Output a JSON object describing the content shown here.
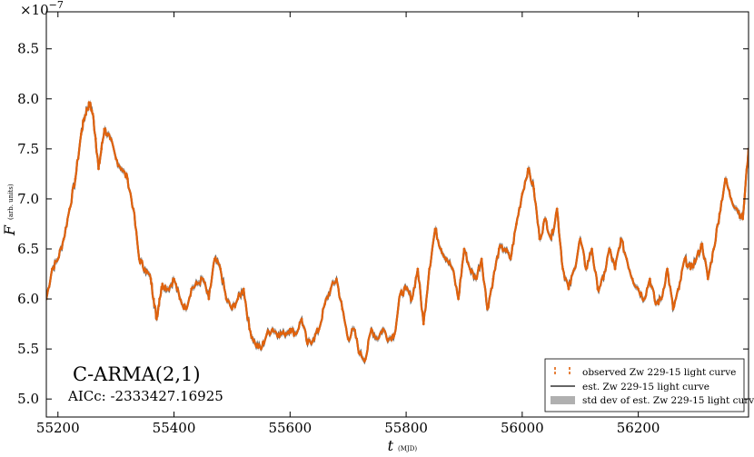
{
  "chart_data": {
    "type": "line",
    "title": "",
    "xlabel": "t",
    "xlabel_unit": "(MJD)",
    "ylabel": "F",
    "ylabel_unit": "(arb. units)",
    "y_scale_label": "×10",
    "y_scale_exponent": "−7",
    "xlim": [
      55180,
      56390
    ],
    "ylim": [
      4.82,
      8.87
    ],
    "xticks": [
      "55200",
      "55400",
      "55600",
      "55800",
      "56000",
      "56200"
    ],
    "xtick_values": [
      55200,
      55400,
      55600,
      55800,
      56000,
      56200
    ],
    "yticks": [
      "5.0",
      "5.5",
      "6.0",
      "6.5",
      "7.0",
      "7.5",
      "8.0",
      "8.5"
    ],
    "ytick_values": [
      5.0,
      5.5,
      6.0,
      6.5,
      7.0,
      7.5,
      8.0,
      8.5
    ],
    "annotation_title": "C-ARMA(2,1)",
    "annotation_aicc": "AICc: -2333427.16925",
    "legend_position": "lower-right",
    "legend": [
      "observed Zw 229-15 light curve",
      "est. Zw 229-15 light curve",
      "std dev of est. Zw 229-15 light curve"
    ],
    "colors": {
      "observed": "#e0620d",
      "estimate": "#666666",
      "std_band": "#b0b0b0"
    },
    "series": [
      {
        "name": "observed Zw 229-15 light curve",
        "x": [
          55180,
          55190,
          55200,
          55210,
          55220,
          55230,
          55240,
          55245,
          55250,
          55255,
          55260,
          55265,
          55270,
          55275,
          55280,
          55290,
          55300,
          55310,
          55320,
          55330,
          55340,
          55350,
          55360,
          55365,
          55370,
          55375,
          55380,
          55390,
          55400,
          55410,
          55420,
          55430,
          55440,
          55450,
          55460,
          55470,
          55480,
          55490,
          55500,
          55510,
          55520,
          55530,
          55540,
          55550,
          55560,
          55570,
          55580,
          55590,
          55600,
          55610,
          55620,
          55630,
          55640,
          55650,
          55660,
          55670,
          55680,
          55690,
          55700,
          55710,
          55720,
          55730,
          55740,
          55750,
          55760,
          55770,
          55780,
          55790,
          55800,
          55810,
          55820,
          55830,
          55840,
          55850,
          55860,
          55870,
          55880,
          55890,
          55900,
          55910,
          55920,
          55930,
          55940,
          55950,
          55960,
          55970,
          55980,
          55990,
          56000,
          56010,
          56020,
          56030,
          56040,
          56050,
          56060,
          56070,
          56080,
          56090,
          56100,
          56110,
          56120,
          56130,
          56140,
          56150,
          56160,
          56170,
          56180,
          56190,
          56200,
          56210,
          56220,
          56230,
          56240,
          56250,
          56260,
          56270,
          56280,
          56290,
          56300,
          56310,
          56320,
          56330,
          56340,
          56350,
          56360,
          56370,
          56380,
          56390
        ],
        "values": [
          6.0,
          6.3,
          6.4,
          6.6,
          6.9,
          7.2,
          7.65,
          7.8,
          7.9,
          7.95,
          7.85,
          7.6,
          7.3,
          7.5,
          7.7,
          7.6,
          7.4,
          7.3,
          7.2,
          6.9,
          6.4,
          6.3,
          6.2,
          6.0,
          5.8,
          6.0,
          6.15,
          6.1,
          6.2,
          6.0,
          5.9,
          6.1,
          6.15,
          6.2,
          6.0,
          6.4,
          6.3,
          6.0,
          5.9,
          6.0,
          6.1,
          5.7,
          5.55,
          5.5,
          5.65,
          5.7,
          5.65,
          5.65,
          5.7,
          5.65,
          5.8,
          5.55,
          5.6,
          5.7,
          5.95,
          6.1,
          6.2,
          5.9,
          5.6,
          5.7,
          5.45,
          5.4,
          5.7,
          5.6,
          5.7,
          5.6,
          5.65,
          6.05,
          6.1,
          6.0,
          6.3,
          5.75,
          6.3,
          6.7,
          6.5,
          6.4,
          6.3,
          6.0,
          6.5,
          6.3,
          6.2,
          6.4,
          5.9,
          6.2,
          6.5,
          6.5,
          6.4,
          6.75,
          7.05,
          7.3,
          7.1,
          6.6,
          6.8,
          6.6,
          6.9,
          6.3,
          6.1,
          6.3,
          6.6,
          6.3,
          6.5,
          6.1,
          6.2,
          6.5,
          6.3,
          6.6,
          6.4,
          6.2,
          6.1,
          6.0,
          6.2,
          5.95,
          6.0,
          6.3,
          5.9,
          6.1,
          6.4,
          6.3,
          6.4,
          6.55,
          6.2,
          6.5,
          6.85,
          7.2,
          7.0,
          6.9,
          6.8,
          7.5
        ]
      }
    ]
  }
}
